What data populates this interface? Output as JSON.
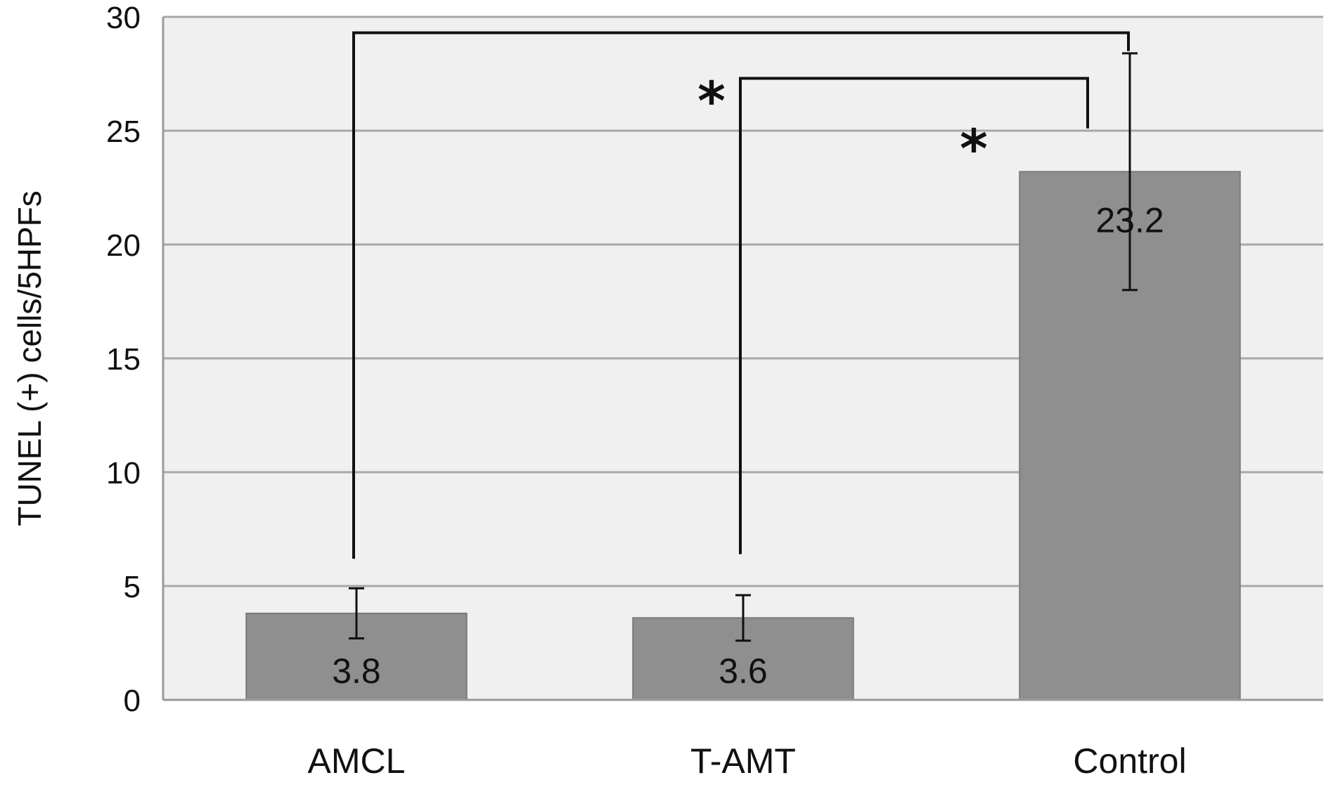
{
  "chart_data": {
    "type": "bar",
    "title": "",
    "xlabel": "",
    "ylabel": "TUNEL (+) cells/5HPFs",
    "ylim": [
      0,
      30
    ],
    "yticks": [
      0,
      5,
      10,
      15,
      20,
      25,
      30
    ],
    "ytick_labels": [
      "0",
      "5",
      "10",
      "15",
      "20",
      "25",
      "30"
    ],
    "grid": true,
    "categories": [
      "AMCL",
      "T-AMT",
      "Control"
    ],
    "values": [
      3.8,
      3.6,
      23.2
    ],
    "value_labels": [
      "3.8",
      "3.6",
      "23.2"
    ],
    "error": [
      1.1,
      1.0,
      5.2
    ],
    "significance": [
      {
        "from": "AMCL",
        "to": "Control",
        "label": "*",
        "bracket_y": 29.3
      },
      {
        "from": "T-AMT",
        "to": "Control",
        "label": "*",
        "bracket_y": 27.3
      }
    ],
    "colors": {
      "bar": "#8f8f8f",
      "bar_edge": "#7a7a7a",
      "plot_bg": "#f0f0f0",
      "grid": "#a8a8a8",
      "axis": "#9a9a9a",
      "ink": "#111111"
    }
  }
}
